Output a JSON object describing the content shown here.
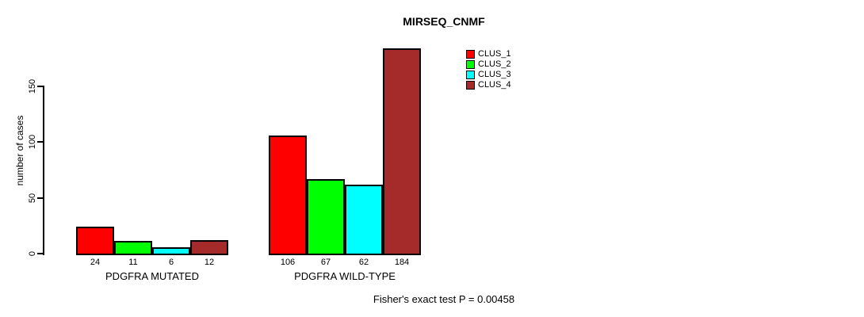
{
  "chart_data": {
    "type": "bar",
    "title": "MIRSEQ_CNMF",
    "ylabel": "number of cases",
    "xlabel": "",
    "ylim": [
      0,
      184
    ],
    "yticks": [
      0,
      50,
      100,
      150
    ],
    "grid": false,
    "legend_position": "top-right",
    "categories": [
      "PDGFRA MUTATED",
      "PDGFRA WILD-TYPE"
    ],
    "series": [
      {
        "name": "CLUS_1",
        "color": "#ff0000",
        "values": [
          24,
          106
        ]
      },
      {
        "name": "CLUS_2",
        "color": "#00ff00",
        "values": [
          11,
          67
        ]
      },
      {
        "name": "CLUS_3",
        "color": "#00ffff",
        "values": [
          6,
          62
        ]
      },
      {
        "name": "CLUS_4",
        "color": "#a52a2a",
        "values": [
          12,
          184
        ]
      }
    ],
    "bar_value_labels": true,
    "annotation": "Fisher's exact test P = 0.00458"
  },
  "colors": {
    "background": "#ffffff",
    "axis": "#000000",
    "text": "#000000"
  }
}
